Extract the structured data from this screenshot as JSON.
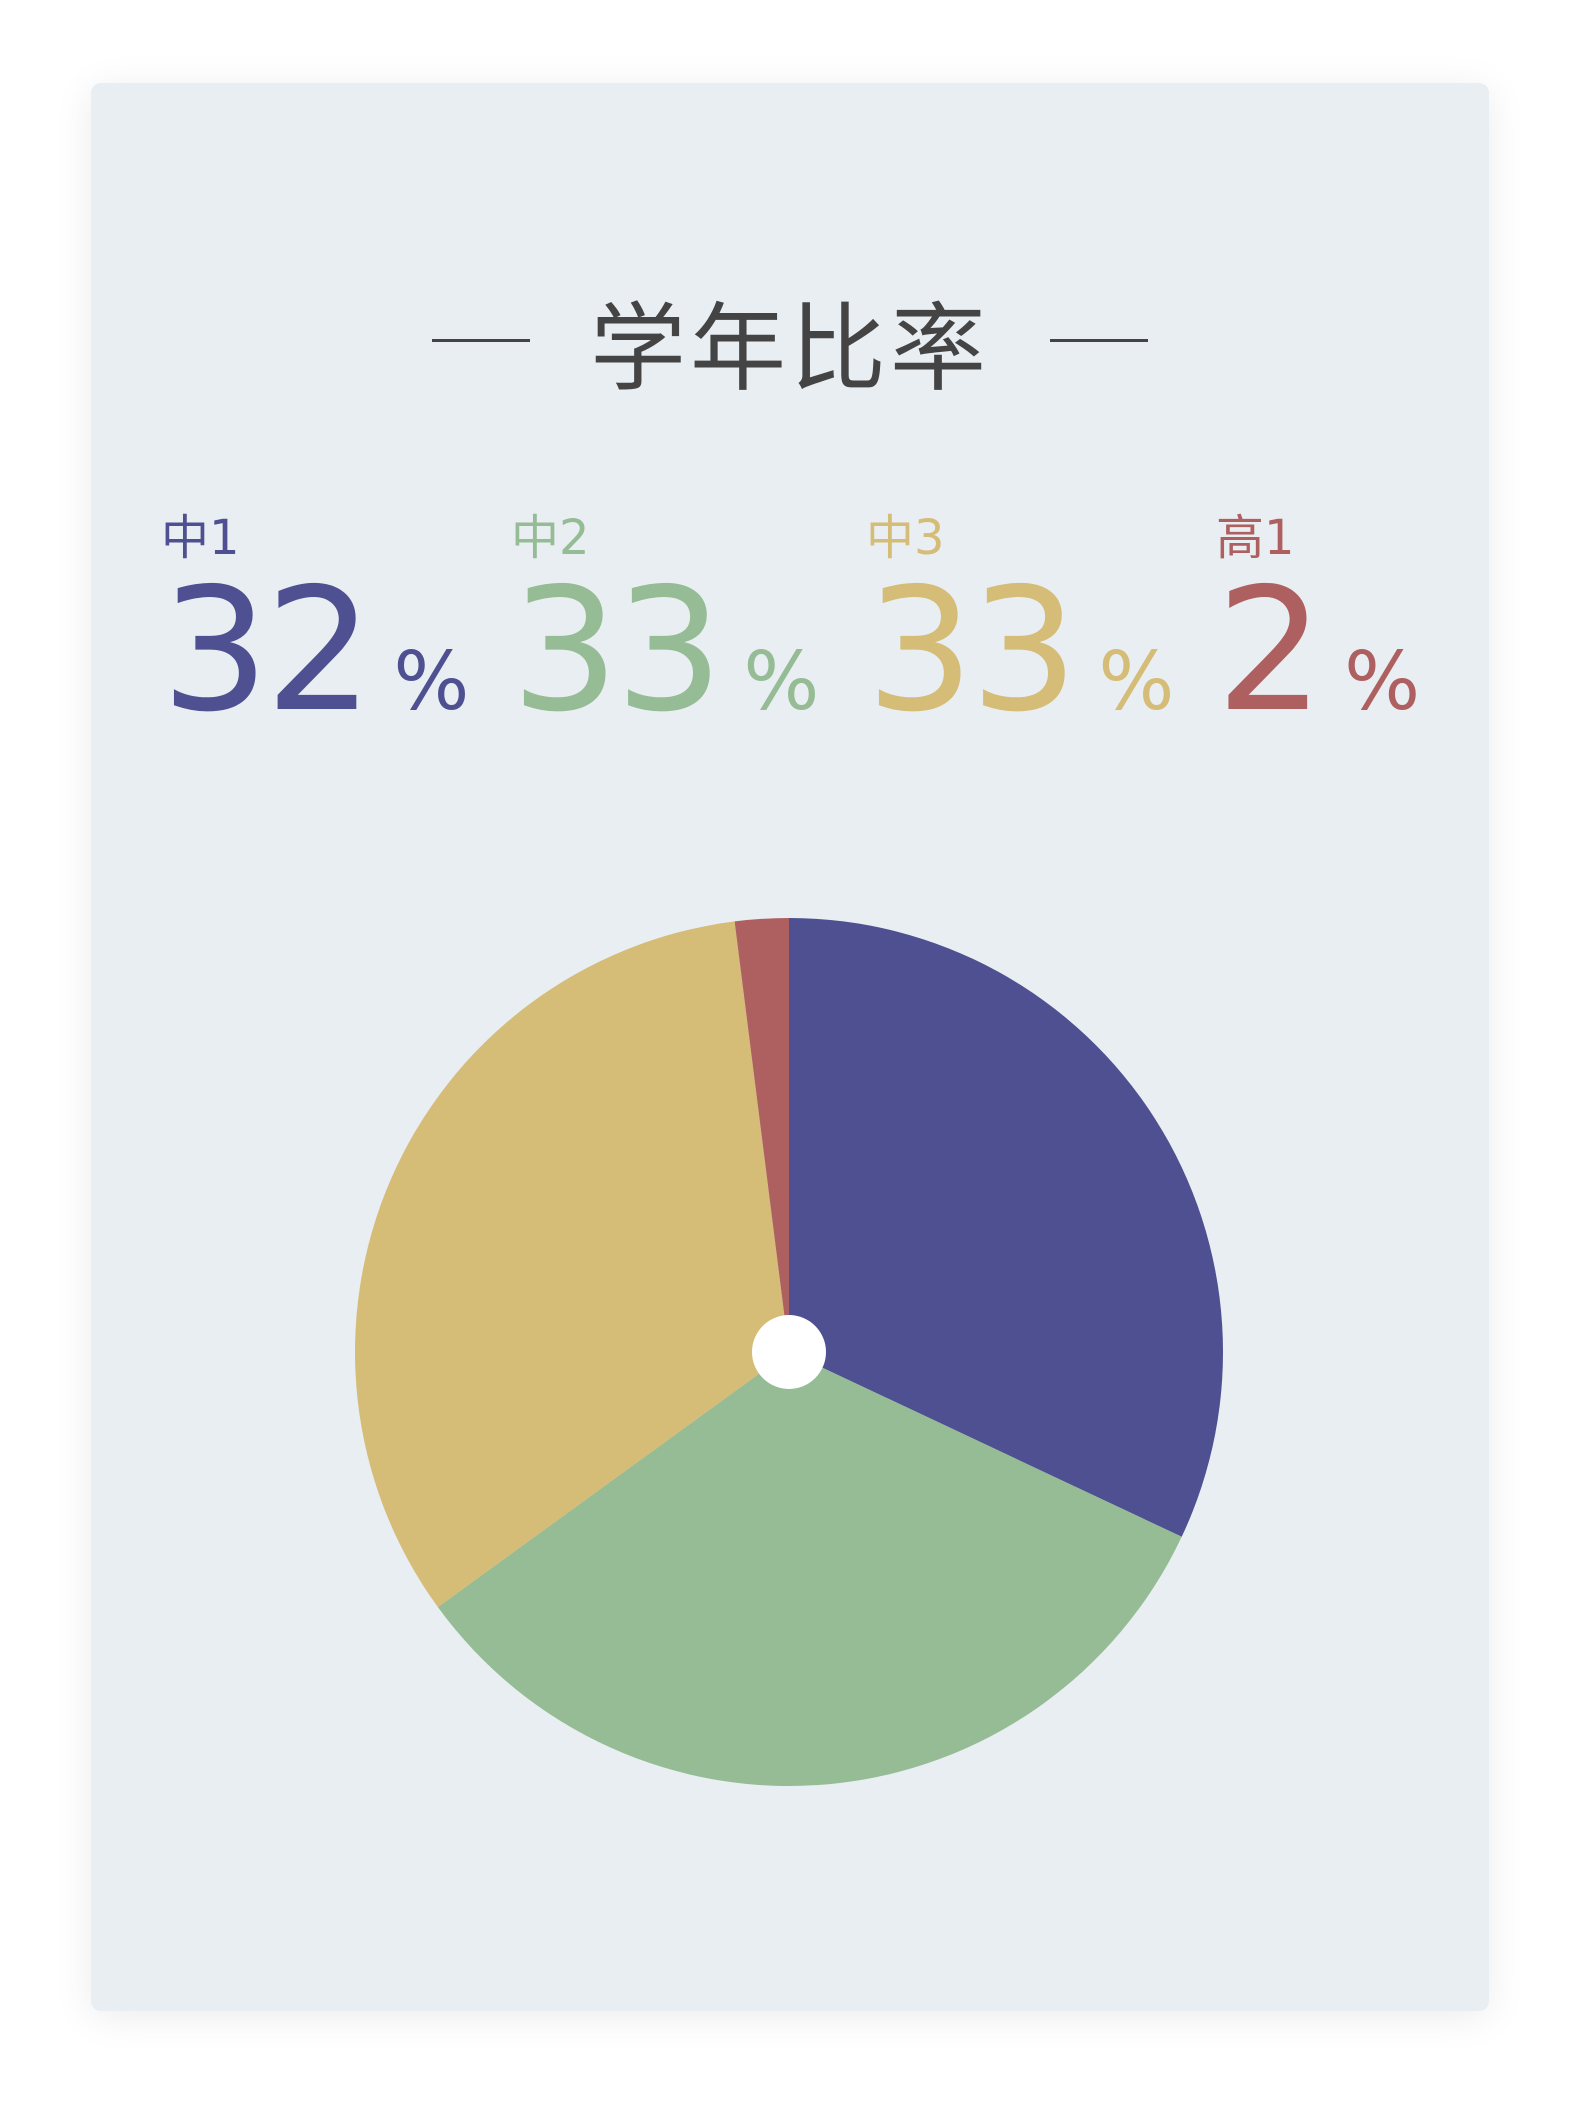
{
  "chart_data": {
    "type": "pie",
    "title": "学年比率",
    "categories": [
      "中1",
      "中2",
      "中3",
      "高1"
    ],
    "values": [
      32,
      33,
      33,
      2
    ],
    "unit": "%",
    "colors": [
      "#4e5091",
      "#95bc94",
      "#d5bc77",
      "#ae6060"
    ],
    "start_angle": "top",
    "direction": "clockwise",
    "center_hole_color": "#ffffff",
    "legend": "top"
  },
  "stats": [
    {
      "label": "中1",
      "value": "32",
      "unit": "%"
    },
    {
      "label": "中2",
      "value": "33",
      "unit": "%"
    },
    {
      "label": "中3",
      "value": "33",
      "unit": "%"
    },
    {
      "label": "高1",
      "value": "2",
      "unit": "%"
    }
  ]
}
